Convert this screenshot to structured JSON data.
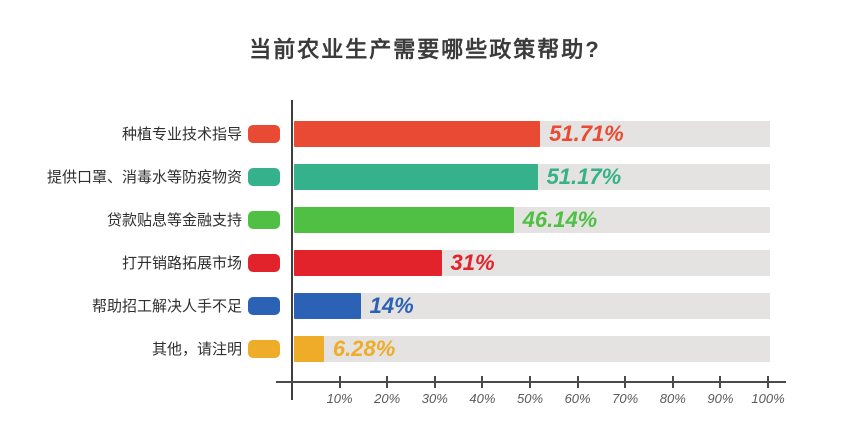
{
  "title": "当前农业生产需要哪些政策帮助?",
  "colors": {
    "track": "#e4e3e1",
    "axis": "#3f3f3f",
    "tick_label": "#5a5a5a",
    "title_text": "#3b3b3b",
    "category_text": "#2f2f2f"
  },
  "chart_data": {
    "type": "bar",
    "orientation": "horizontal",
    "title": "当前农业生产需要哪些政策帮助?",
    "xlabel": "",
    "ylabel": "",
    "xlim": [
      0,
      100
    ],
    "grid": false,
    "legend": "none",
    "x_ticks": [
      "10%",
      "20%",
      "30%",
      "40%",
      "50%",
      "60%",
      "70%",
      "80%",
      "90%",
      "100%"
    ],
    "categories": [
      "种植专业技术指导",
      "提供口罩、消毒水等防疫物资",
      "贷款贴息等金融支持",
      "打开销路拓展市场",
      "帮助招工解决人手不足",
      "其他，请注明"
    ],
    "values": [
      51.71,
      51.17,
      46.14,
      31,
      14,
      6.28
    ],
    "rows": [
      {
        "label": "种植专业技术指导",
        "value": 51.71,
        "value_label": "51.71%",
        "color": "#e84a33"
      },
      {
        "label": "提供口罩、消毒水等防疫物资",
        "value": 51.17,
        "value_label": "51.17%",
        "color": "#35b28b"
      },
      {
        "label": "贷款贴息等金融支持",
        "value": 46.14,
        "value_label": "46.14%",
        "color": "#4fc043"
      },
      {
        "label": "打开销路拓展市场",
        "value": 31,
        "value_label": "31%",
        "color": "#e2232c"
      },
      {
        "label": "帮助招工解决人手不足",
        "value": 14,
        "value_label": "14%",
        "color": "#2b62b5"
      },
      {
        "label": "其他，请注明",
        "value": 6.28,
        "value_label": "6.28%",
        "color": "#eeac28"
      }
    ]
  }
}
